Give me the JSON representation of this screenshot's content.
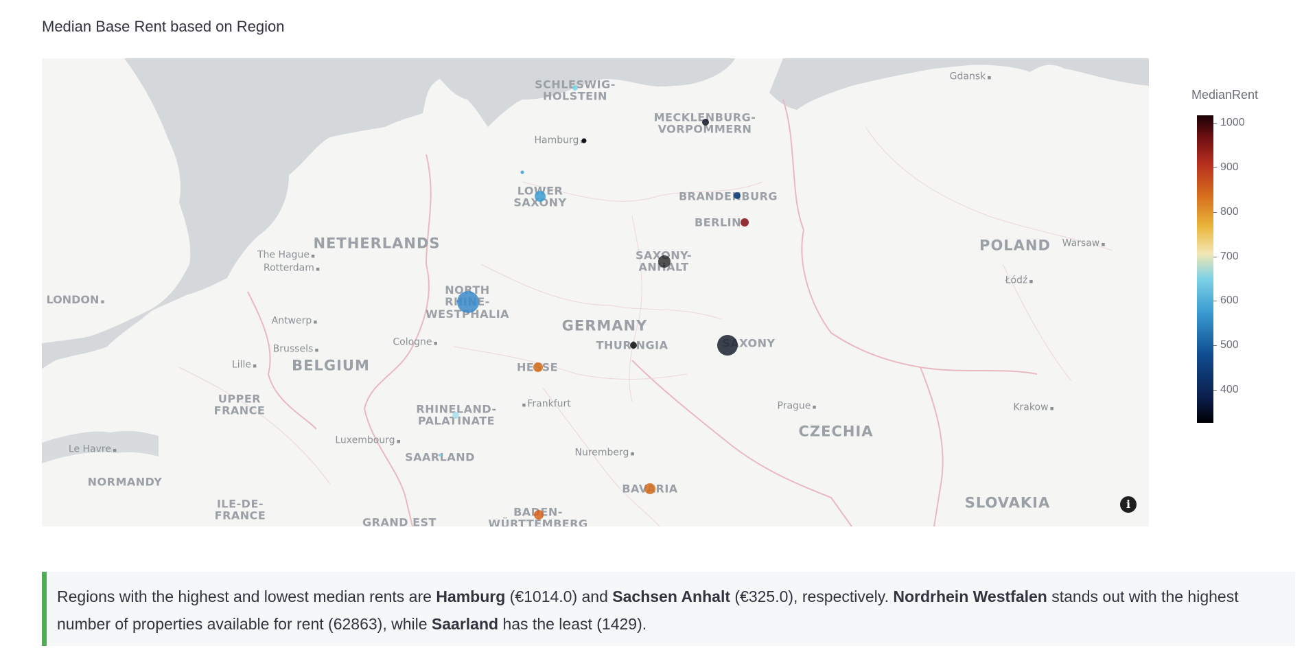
{
  "title": "Median Base Rent based on Region",
  "map": {
    "land_color": "#f5f5f4",
    "water_color": "#d4d8da",
    "border_color": "#e8b9bf",
    "label_color": "#9aa0a6",
    "country_labels": [
      {
        "id": "netherlands",
        "text": "NETHERLANDS"
      },
      {
        "id": "belgium",
        "text": "BELGIUM"
      },
      {
        "id": "germany",
        "text": "GERMANY"
      },
      {
        "id": "poland",
        "text": "POLAND"
      },
      {
        "id": "czechia",
        "text": "CZECHIA"
      },
      {
        "id": "slovakia",
        "text": "SLOVAKIA"
      }
    ],
    "region_labels": [
      {
        "id": "schleswig",
        "text": "SCHLESWIG-\nHOLSTEIN"
      },
      {
        "id": "mecklenburg",
        "text": "MECKLENBURG-\nVORPOMMERN"
      },
      {
        "id": "lower-saxony",
        "text": "LOWER\nSAXONY"
      },
      {
        "id": "brandenburg",
        "text": "BRANDENBURG"
      },
      {
        "id": "berlin",
        "text": "BERLIN"
      },
      {
        "id": "saxony-anhalt",
        "text": "SAXONY-\nANHALT"
      },
      {
        "id": "nrw",
        "text": "NORTH\nRHINE-\nWESTPHALIA"
      },
      {
        "id": "thuringia",
        "text": "THURINGIA"
      },
      {
        "id": "saxony",
        "text": "SAXONY"
      },
      {
        "id": "hesse",
        "text": "HESSE"
      },
      {
        "id": "rhineland",
        "text": "RHINELAND-\nPALATINATE"
      },
      {
        "id": "saarland",
        "text": "SAARLAND"
      },
      {
        "id": "bavaria",
        "text": "BAVARIA"
      },
      {
        "id": "baden",
        "text": "BADEN-\nWÜRTTEMBERG"
      },
      {
        "id": "upper-france",
        "text": "UPPER\nFRANCE"
      },
      {
        "id": "normandy",
        "text": "NORMANDY"
      },
      {
        "id": "ile-de-france",
        "text": "ILE-DE-\nFRANCE"
      },
      {
        "id": "grand-est",
        "text": "GRAND EST"
      }
    ],
    "city_labels": [
      {
        "id": "gdansk",
        "text": "Gdansk"
      },
      {
        "id": "hamburg",
        "text": "Hamburg"
      },
      {
        "id": "the-hague",
        "text": "The Hague"
      },
      {
        "id": "rotterdam",
        "text": "Rotterdam"
      },
      {
        "id": "london",
        "text": "LONDON"
      },
      {
        "id": "antwerp",
        "text": "Antwerp"
      },
      {
        "id": "brussels",
        "text": "Brussels"
      },
      {
        "id": "cologne",
        "text": "Cologne"
      },
      {
        "id": "lille",
        "text": "Lille"
      },
      {
        "id": "frankfurt",
        "text": "Frankfurt"
      },
      {
        "id": "luxembourg",
        "text": "Luxembourg"
      },
      {
        "id": "le-havre",
        "text": "Le Havre"
      },
      {
        "id": "nuremberg",
        "text": "Nuremberg"
      },
      {
        "id": "prague",
        "text": "Prague"
      },
      {
        "id": "krakow",
        "text": "Krakow"
      },
      {
        "id": "warsaw",
        "text": "Warsaw"
      },
      {
        "id": "lodz",
        "text": "Łódź"
      }
    ],
    "info_icon": "info-icon"
  },
  "legend": {
    "title": "MedianRent",
    "ticks": [
      "1000",
      "900",
      "800",
      "700",
      "600",
      "500",
      "400"
    ]
  },
  "callout": {
    "accent_color": "#4caf50",
    "t1": "Regions with the highest and lowest median rents are ",
    "b1": "Hamburg",
    "t2": " (€1014.0) and ",
    "b2": "Sachsen Anhalt",
    "t3": " (€325.0), respectively. ",
    "b3": "Nordrhein Westfalen",
    "t4": " stands out with the highest number of properties available for rent (62863), while ",
    "b4": "Saarland",
    "t5": " has the least (1429)."
  }
}
